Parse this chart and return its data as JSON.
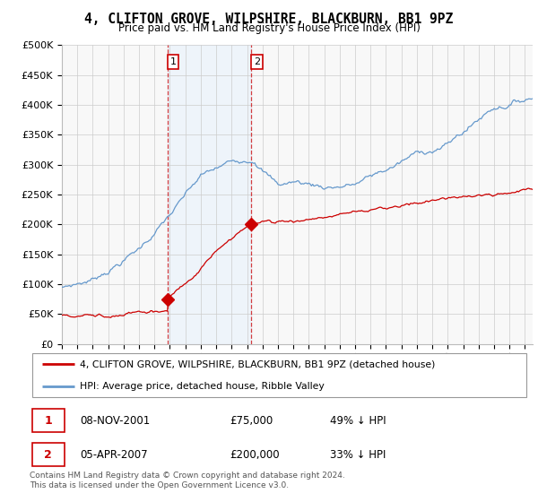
{
  "title": "4, CLIFTON GROVE, WILPSHIRE, BLACKBURN, BB1 9PZ",
  "subtitle": "Price paid vs. HM Land Registry's House Price Index (HPI)",
  "legend_red": "4, CLIFTON GROVE, WILPSHIRE, BLACKBURN, BB1 9PZ (detached house)",
  "legend_blue": "HPI: Average price, detached house, Ribble Valley",
  "transaction1_date": "08-NOV-2001",
  "transaction1_price": "£75,000",
  "transaction1_hpi": "49% ↓ HPI",
  "transaction2_date": "05-APR-2007",
  "transaction2_price": "£200,000",
  "transaction2_hpi": "33% ↓ HPI",
  "footnote": "Contains HM Land Registry data © Crown copyright and database right 2024.\nThis data is licensed under the Open Government Licence v3.0.",
  "red_color": "#cc0000",
  "blue_color": "#6699cc",
  "shade_color": "#ddeeff",
  "marker1_x": 2001.854,
  "marker1_y": 75000,
  "marker2_x": 2007.27,
  "marker2_y": 200000,
  "vline1_x": 2001.854,
  "vline2_x": 2007.27,
  "xmin": 1995.0,
  "xmax": 2025.5,
  "ymin": 0,
  "ymax": 500000,
  "yticks": [
    0,
    50000,
    100000,
    150000,
    200000,
    250000,
    300000,
    350000,
    400000,
    450000,
    500000
  ],
  "bg_color": "#f8f8f8"
}
